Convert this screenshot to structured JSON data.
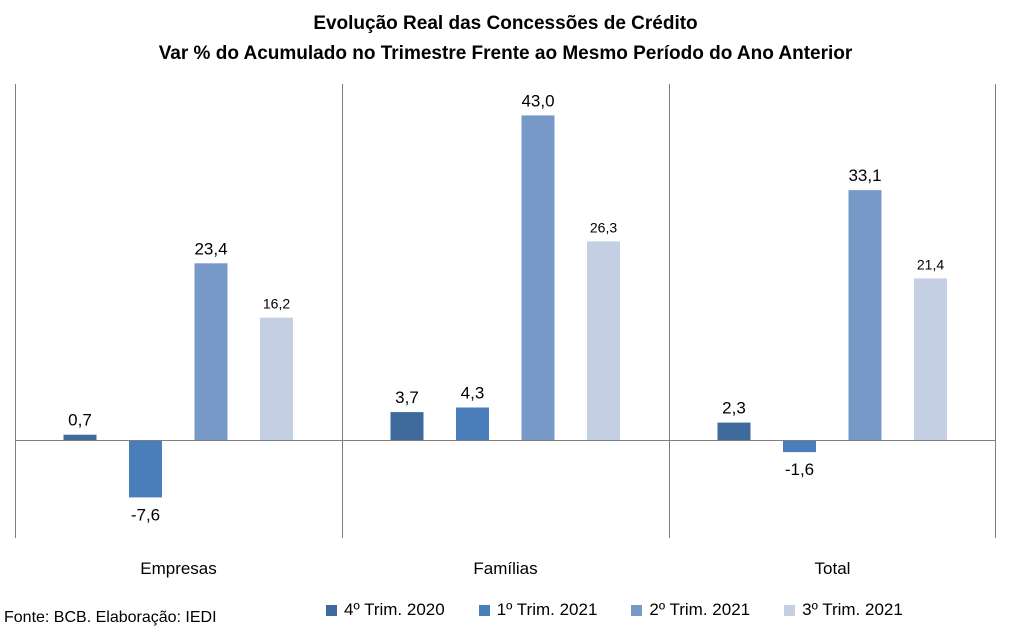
{
  "chart_data": {
    "type": "bar",
    "title": "Evolução Real das Concessões de Crédito",
    "subtitle": "Var % do Acumulado no Trimestre Frente ao Mesmo Período do Ano Anterior",
    "categories": [
      "Empresas",
      "Famílias",
      "Total"
    ],
    "series": [
      {
        "name": "4º Trim. 2020",
        "color": "#3f6a9c",
        "values": [
          0.7,
          3.7,
          2.3
        ],
        "labels": [
          "0,7",
          "3,7",
          "2,3"
        ]
      },
      {
        "name": "1º Trim. 2021",
        "color": "#4a7ebb",
        "values": [
          -7.6,
          4.3,
          -1.6
        ],
        "labels": [
          "-7,6",
          "4,3",
          "-1,6"
        ]
      },
      {
        "name": "2º Trim. 2021",
        "color": "#7799c8",
        "values": [
          23.4,
          43.0,
          33.1
        ],
        "labels": [
          "23,4",
          "43,0",
          "33,1"
        ]
      },
      {
        "name": "3º Trim. 2021",
        "color": "#c5cfe3",
        "values": [
          16.2,
          26.3,
          21.4
        ],
        "labels": [
          "16,2",
          "26,3",
          "21,4"
        ]
      }
    ],
    "ylim": [
      -13,
      47
    ],
    "legend": "bottom",
    "grid": false
  },
  "source": "Fonte: BCB. Elaboração: IEDI"
}
